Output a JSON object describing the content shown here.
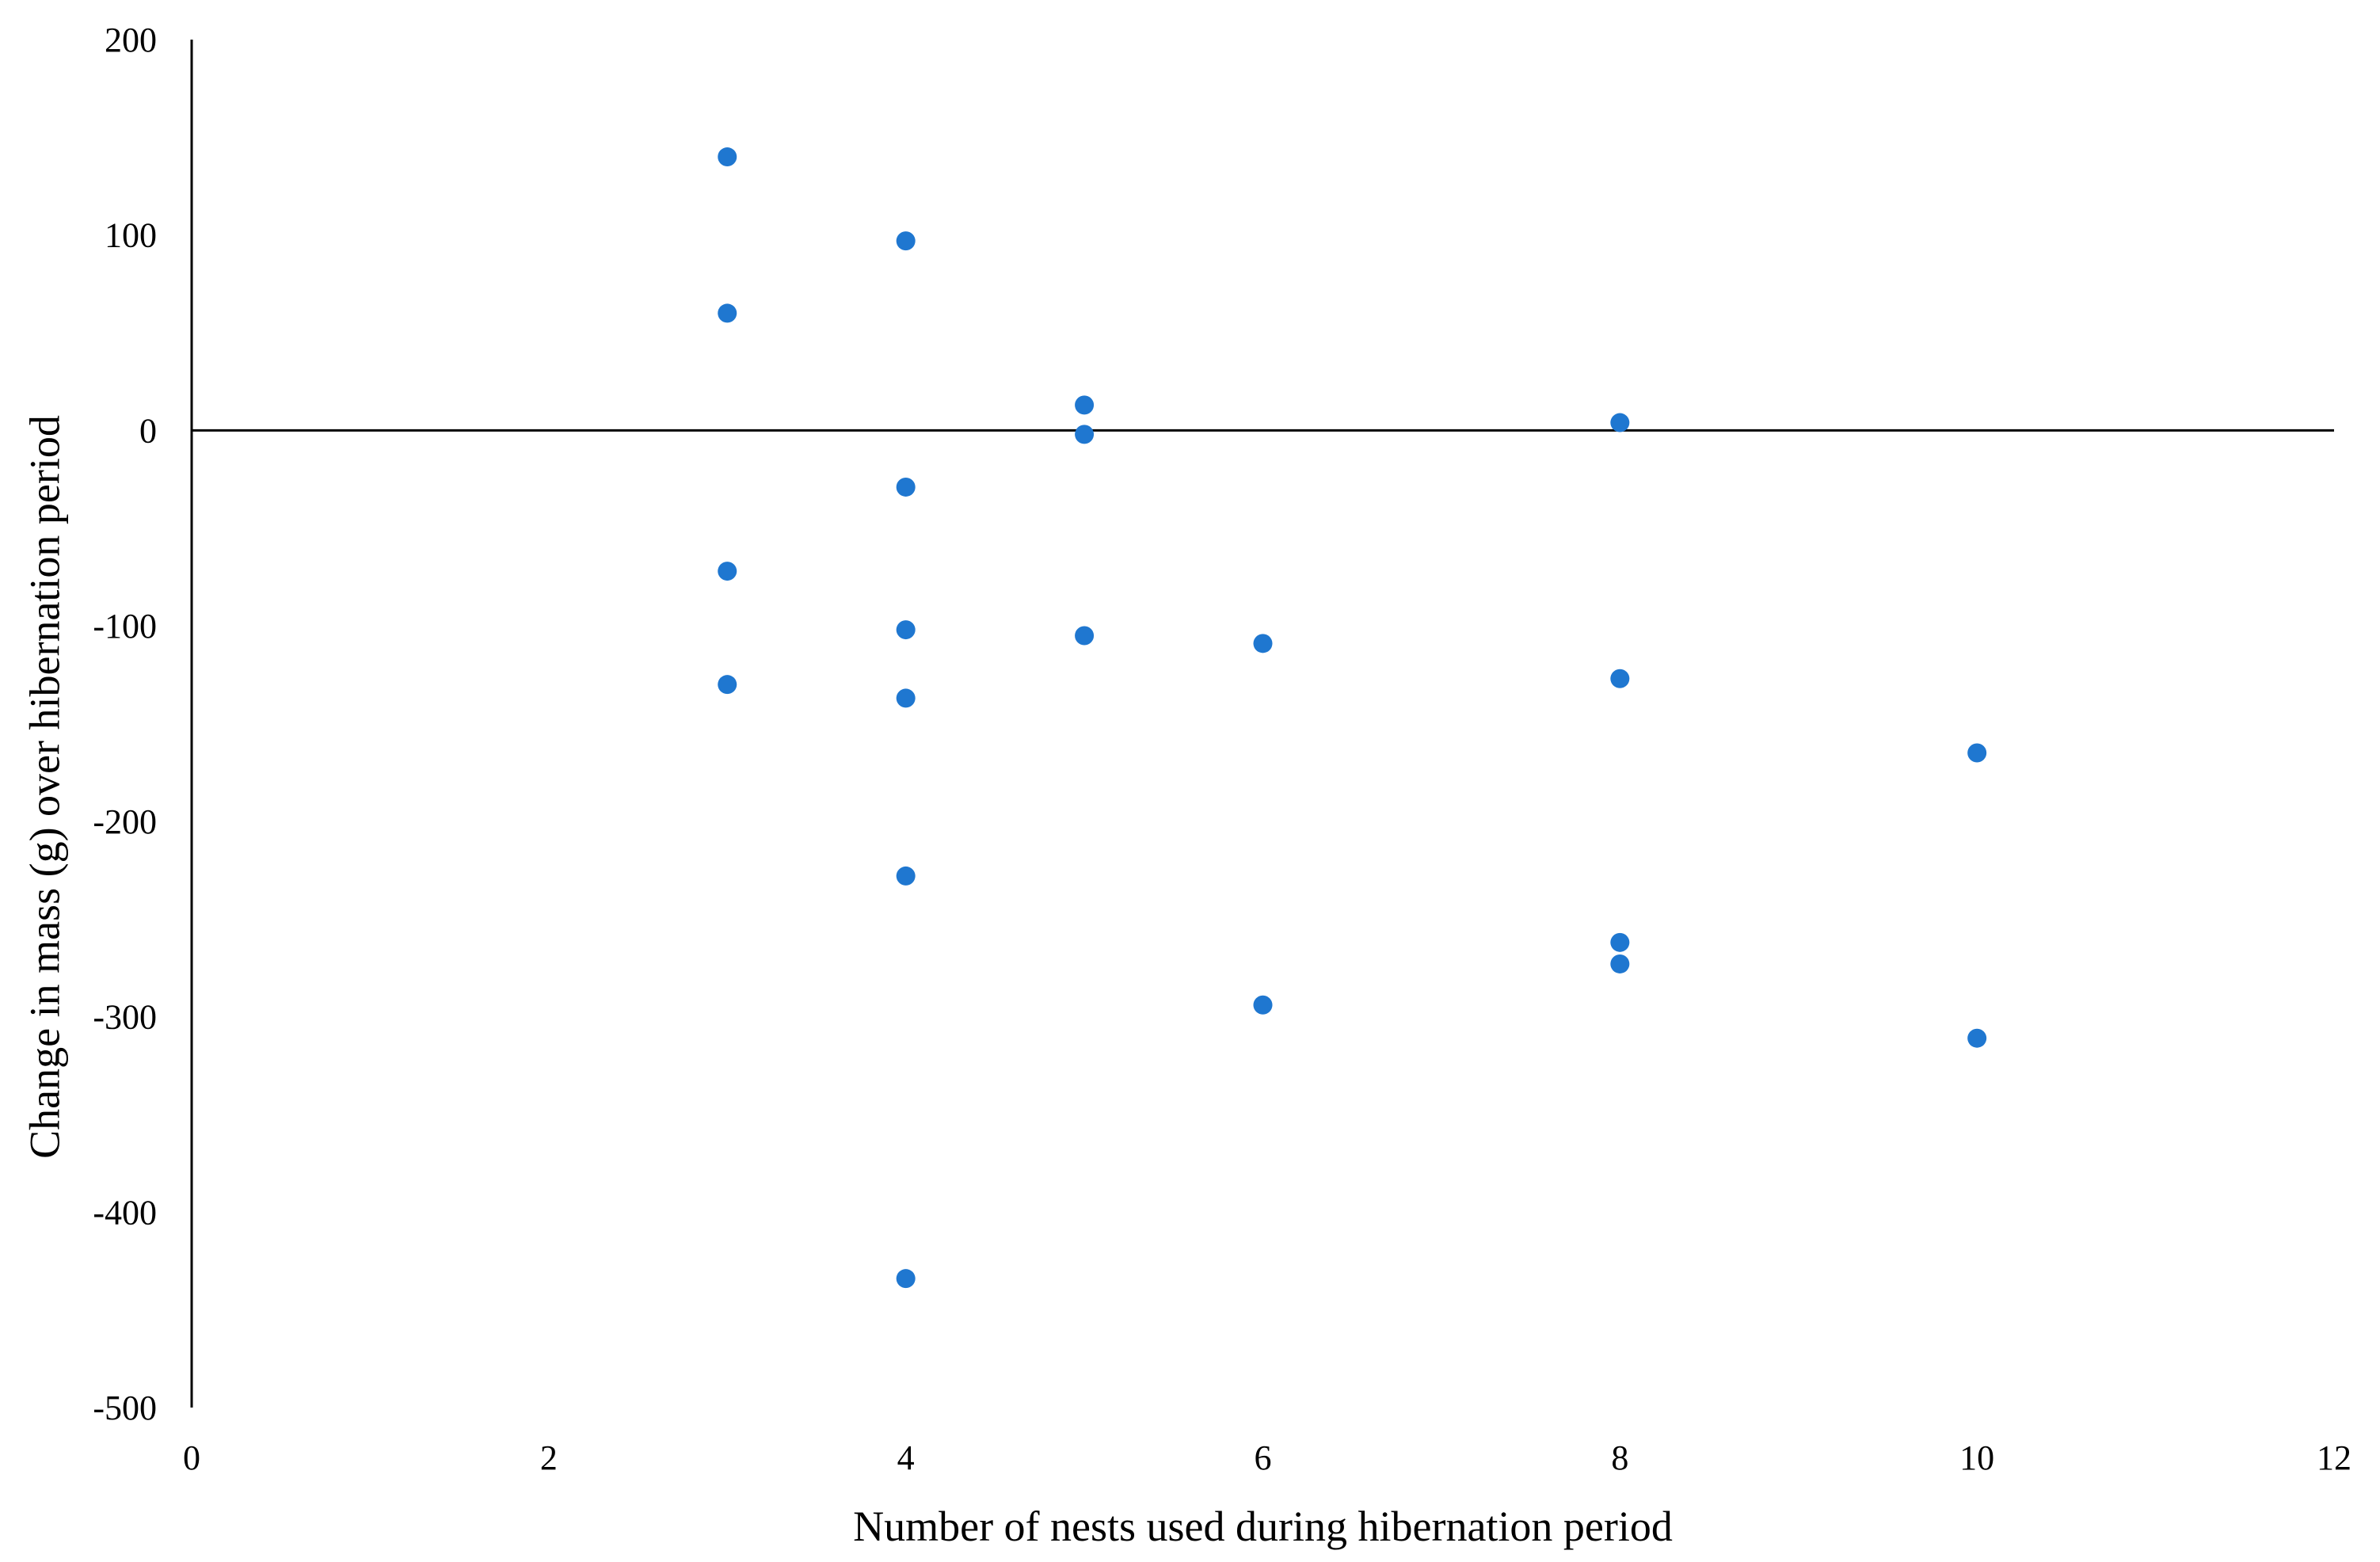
{
  "chart_data": {
    "type": "scatter",
    "title": "",
    "xlabel": "Number of nests used during hibernation period",
    "ylabel": "Change in mass (g) over hibernation period",
    "xlim": [
      0,
      12
    ],
    "ylim": [
      -500,
      200
    ],
    "x_ticks": [
      "0",
      "2",
      "4",
      "6",
      "8",
      "10",
      "12"
    ],
    "y_ticks": [
      "200",
      "100",
      "0",
      "-100",
      "-200",
      "-300",
      "-400",
      "-500"
    ],
    "grid": false,
    "legend": "none",
    "marker_color": "#1f77d0",
    "series": [
      {
        "points": [
          [
            3,
            140
          ],
          [
            3,
            60
          ],
          [
            3,
            -72
          ],
          [
            3,
            -130
          ],
          [
            4,
            97
          ],
          [
            4,
            -29
          ],
          [
            4,
            -102
          ],
          [
            4,
            -137
          ],
          [
            4,
            -228
          ],
          [
            4,
            -434
          ],
          [
            5,
            13
          ],
          [
            5,
            -2
          ],
          [
            5,
            -105
          ],
          [
            6,
            -109
          ],
          [
            6,
            -294
          ],
          [
            8,
            4
          ],
          [
            8,
            -127
          ],
          [
            8,
            -262
          ],
          [
            8,
            -273
          ],
          [
            10,
            -165
          ],
          [
            10,
            -311
          ]
        ]
      }
    ]
  }
}
